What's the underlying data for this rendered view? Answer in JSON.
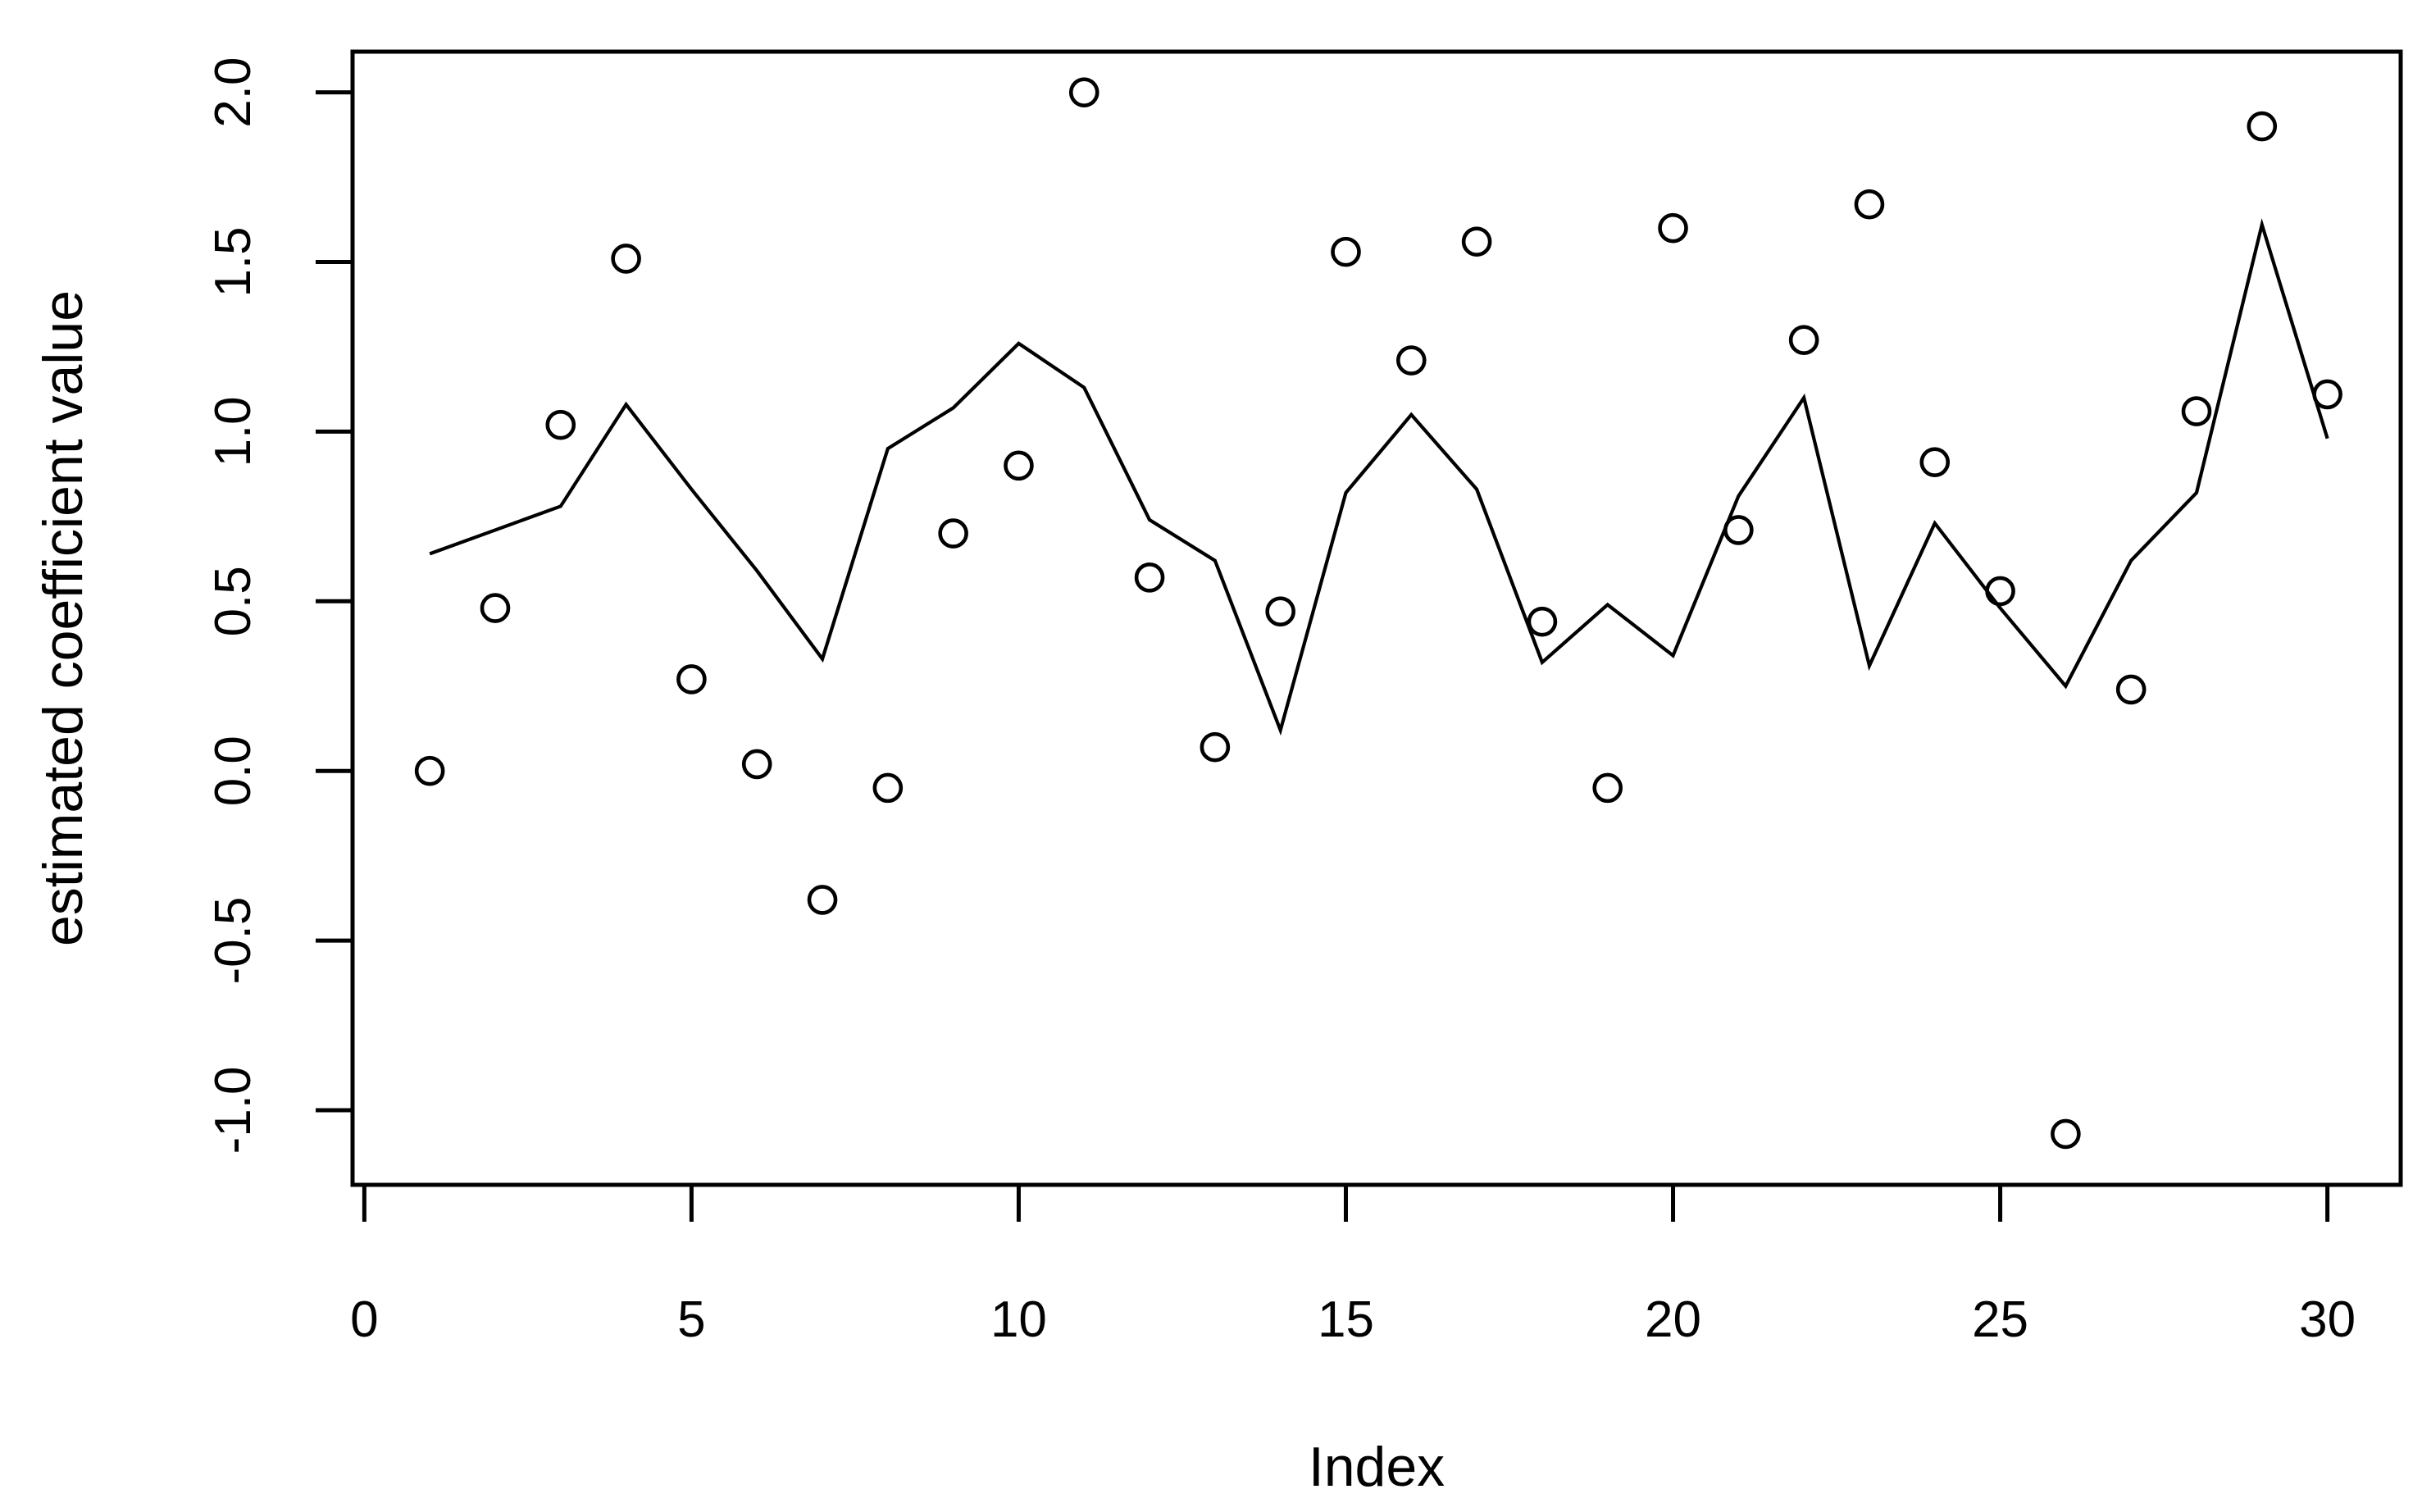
{
  "chart_data": {
    "type": "line",
    "subtype": "scatter-points-with-line-overlay",
    "title": "",
    "xlabel": "Index",
    "ylabel": "estimated coefficient value",
    "x_tick_labels": [
      "0",
      "5",
      "10",
      "15",
      "20",
      "25",
      "30"
    ],
    "x_tick_values": [
      0,
      5,
      10,
      15,
      20,
      25,
      30
    ],
    "y_tick_labels": [
      "-1.0",
      "-0.5",
      "0.0",
      "0.5",
      "1.0",
      "1.5",
      "2.0"
    ],
    "y_tick_values": [
      -1.0,
      -0.5,
      0.0,
      0.5,
      1.0,
      1.5,
      2.0
    ],
    "xlim": [
      -0.18,
      31.12
    ],
    "ylim": [
      -1.22,
      2.12
    ],
    "grid": false,
    "legend": false,
    "x": [
      1,
      2,
      3,
      4,
      5,
      6,
      7,
      8,
      9,
      10,
      11,
      12,
      13,
      14,
      15,
      16,
      17,
      18,
      19,
      20,
      21,
      22,
      23,
      24,
      25,
      26,
      27,
      28,
      29,
      30
    ],
    "series": [
      {
        "name": "observed-points",
        "marker": "open-circle",
        "values": [
          0.0,
          0.48,
          1.02,
          1.51,
          0.27,
          0.02,
          -0.38,
          -0.05,
          0.7,
          0.9,
          2.0,
          0.57,
          0.07,
          0.47,
          1.53,
          1.21,
          1.56,
          0.44,
          -0.05,
          1.6,
          0.71,
          1.27,
          1.67,
          0.91,
          0.53,
          -1.07,
          0.24,
          1.06,
          1.9,
          1.11
        ]
      },
      {
        "name": "estimated-line",
        "marker": "none",
        "values": [
          0.64,
          0.71,
          0.78,
          1.08,
          0.83,
          0.59,
          0.33,
          0.95,
          1.07,
          1.26,
          1.13,
          0.74,
          0.62,
          0.12,
          0.82,
          1.05,
          0.83,
          0.32,
          0.49,
          0.34,
          0.81,
          1.1,
          0.31,
          0.73,
          0.48,
          0.25,
          0.62,
          0.82,
          1.61,
          0.98
        ]
      }
    ]
  }
}
